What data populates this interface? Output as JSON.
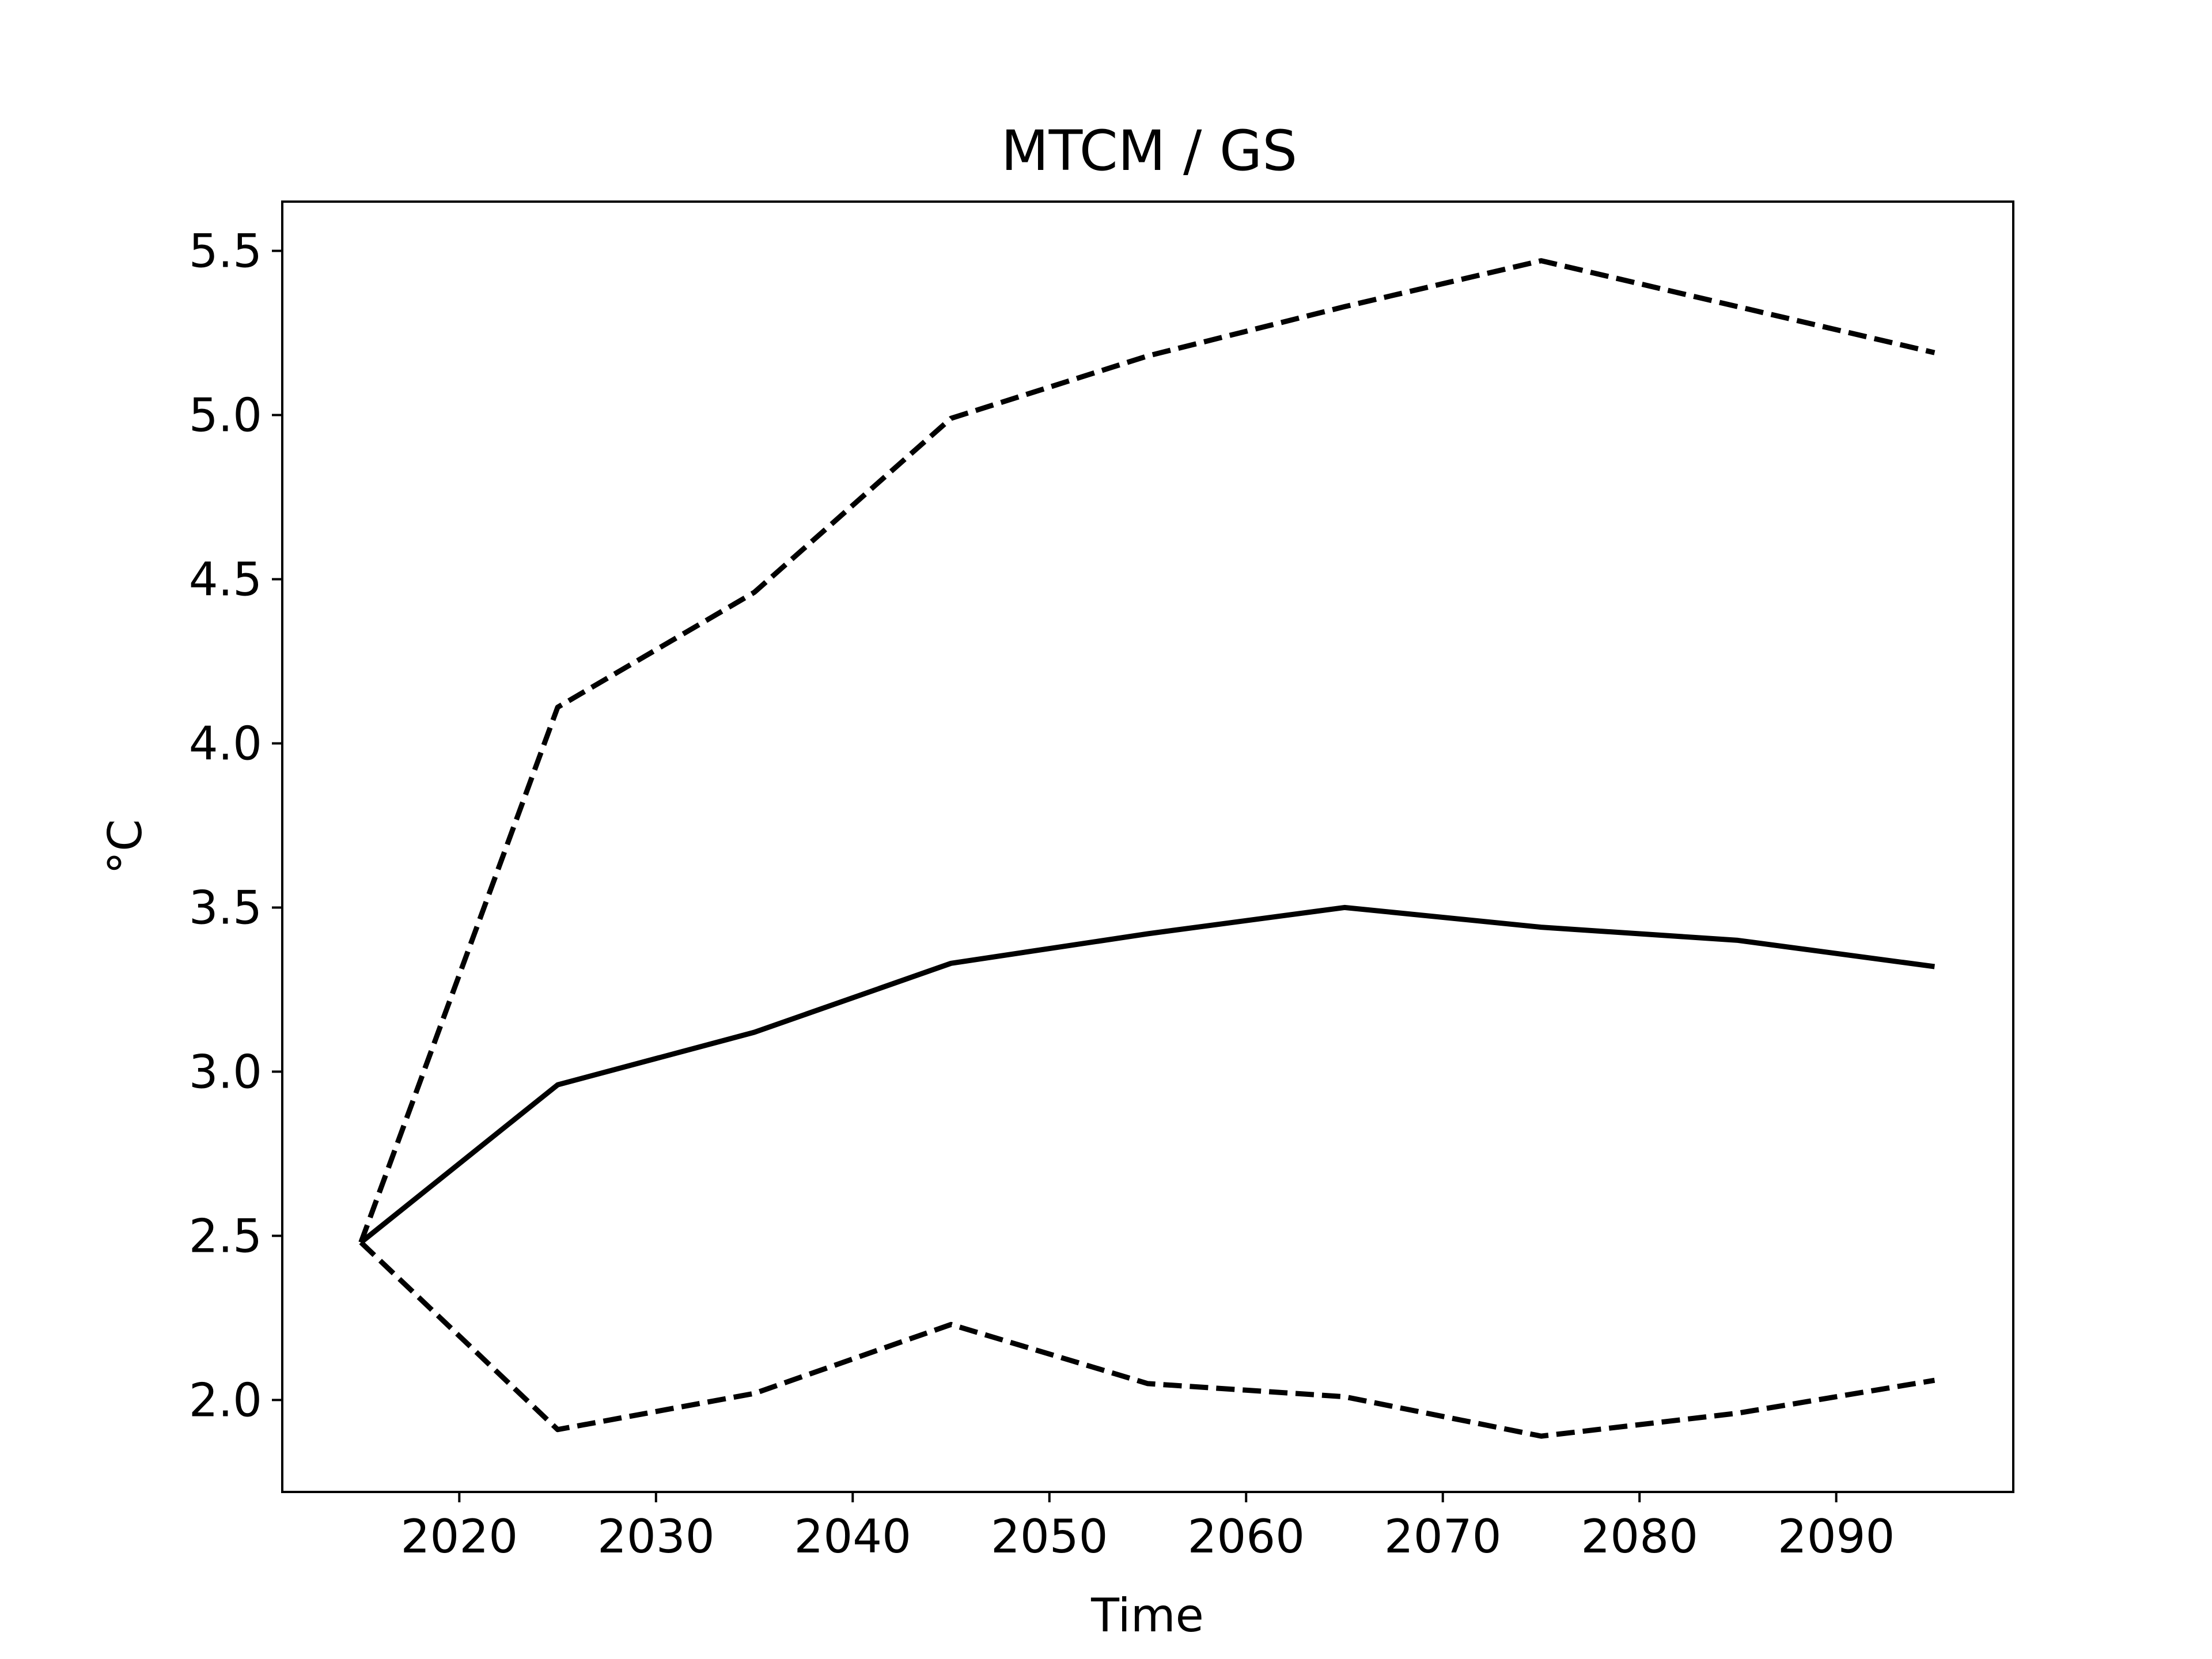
{
  "chart_data": {
    "type": "line",
    "title": "MTCM / GS",
    "xlabel": "Time",
    "ylabel": "°C",
    "xlim": [
      2011,
      2099
    ],
    "ylim": [
      1.72,
      5.65
    ],
    "xticks": [
      2020,
      2030,
      2040,
      2050,
      2060,
      2070,
      2080,
      2090
    ],
    "yticks": [
      2.0,
      2.5,
      3.0,
      3.5,
      4.0,
      4.5,
      5.0,
      5.5
    ],
    "ytick_labels": [
      "2.0",
      "2.5",
      "3.0",
      "3.5",
      "4.0",
      "4.5",
      "5.0",
      "5.5"
    ],
    "grid": false,
    "legend": "none",
    "x": [
      2015,
      2025,
      2035,
      2045,
      2055,
      2065,
      2075,
      2085,
      2095
    ],
    "series": [
      {
        "values": [
          2.48,
          4.11,
          4.46,
          4.99,
          5.18,
          5.33,
          5.47,
          5.33,
          5.19
        ],
        "style": "dashed",
        "color": "#000000"
      },
      {
        "values": [
          2.48,
          2.96,
          3.12,
          3.33,
          3.42,
          3.5,
          3.44,
          3.4,
          3.32
        ],
        "style": "solid",
        "color": "#000000"
      },
      {
        "values": [
          2.48,
          1.91,
          2.02,
          2.23,
          2.05,
          2.01,
          1.89,
          1.96,
          2.06
        ],
        "style": "dashed",
        "color": "#000000"
      }
    ]
  }
}
